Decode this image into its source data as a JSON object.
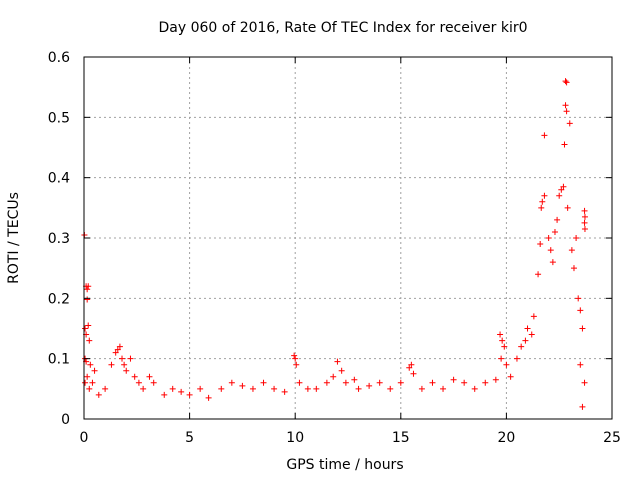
{
  "chart_data": {
    "type": "scatter",
    "title": "Day 060 of 2016, Rate Of TEC Index for receiver kir0",
    "xlabel": "GPS time / hours",
    "ylabel": "ROTI / TECUs",
    "xlim": [
      0,
      25
    ],
    "ylim": [
      0,
      0.6
    ],
    "x_ticks": [
      0,
      5,
      10,
      15,
      20,
      25
    ],
    "x_tick_labels": [
      "0",
      "5",
      "10",
      "15",
      "20",
      "25"
    ],
    "y_ticks": [
      0,
      0.1,
      0.2,
      0.3,
      0.4,
      0.5,
      0.6
    ],
    "y_tick_labels": [
      "0",
      "0.1",
      "0.2",
      "0.3",
      "0.4",
      "0.5",
      "0.6"
    ],
    "grid": true,
    "marker": "plus",
    "color": "#ff0000",
    "series": [
      {
        "name": "ROTI",
        "points": [
          [
            0.02,
            0.305
          ],
          [
            0.1,
            0.22
          ],
          [
            0.15,
            0.215
          ],
          [
            0.2,
            0.22
          ],
          [
            0.15,
            0.198
          ],
          [
            0.05,
            0.15
          ],
          [
            0.1,
            0.14
          ],
          [
            0.2,
            0.155
          ],
          [
            0.25,
            0.13
          ],
          [
            0.05,
            0.1
          ],
          [
            0.1,
            0.095
          ],
          [
            0.3,
            0.09
          ],
          [
            0.05,
            0.06
          ],
          [
            0.15,
            0.07
          ],
          [
            0.25,
            0.05
          ],
          [
            0.4,
            0.06
          ],
          [
            0.5,
            0.08
          ],
          [
            0.7,
            0.04
          ],
          [
            1.0,
            0.05
          ],
          [
            1.3,
            0.09
          ],
          [
            1.5,
            0.11
          ],
          [
            1.6,
            0.115
          ],
          [
            1.7,
            0.12
          ],
          [
            1.8,
            0.1
          ],
          [
            1.9,
            0.09
          ],
          [
            2.0,
            0.08
          ],
          [
            2.2,
            0.1
          ],
          [
            2.4,
            0.07
          ],
          [
            2.6,
            0.06
          ],
          [
            2.8,
            0.05
          ],
          [
            3.1,
            0.07
          ],
          [
            3.3,
            0.06
          ],
          [
            3.8,
            0.04
          ],
          [
            4.2,
            0.05
          ],
          [
            4.6,
            0.045
          ],
          [
            5.0,
            0.04
          ],
          [
            5.5,
            0.05
          ],
          [
            5.9,
            0.035
          ],
          [
            6.5,
            0.05
          ],
          [
            7.0,
            0.06
          ],
          [
            7.5,
            0.055
          ],
          [
            8.0,
            0.05
          ],
          [
            8.5,
            0.06
          ],
          [
            9.0,
            0.05
          ],
          [
            9.5,
            0.045
          ],
          [
            9.95,
            0.105
          ],
          [
            10.0,
            0.1
          ],
          [
            10.05,
            0.09
          ],
          [
            10.2,
            0.06
          ],
          [
            10.6,
            0.05
          ],
          [
            11.0,
            0.05
          ],
          [
            11.5,
            0.06
          ],
          [
            11.8,
            0.07
          ],
          [
            12.0,
            0.095
          ],
          [
            12.2,
            0.08
          ],
          [
            12.4,
            0.06
          ],
          [
            12.8,
            0.065
          ],
          [
            13.0,
            0.05
          ],
          [
            13.5,
            0.055
          ],
          [
            14.0,
            0.06
          ],
          [
            14.5,
            0.05
          ],
          [
            15.0,
            0.06
          ],
          [
            15.4,
            0.085
          ],
          [
            15.5,
            0.09
          ],
          [
            15.6,
            0.075
          ],
          [
            16.0,
            0.05
          ],
          [
            16.5,
            0.06
          ],
          [
            17.0,
            0.05
          ],
          [
            17.5,
            0.065
          ],
          [
            18.0,
            0.06
          ],
          [
            18.5,
            0.05
          ],
          [
            19.0,
            0.06
          ],
          [
            19.5,
            0.065
          ],
          [
            19.7,
            0.14
          ],
          [
            19.8,
            0.13
          ],
          [
            19.9,
            0.12
          ],
          [
            19.75,
            0.1
          ],
          [
            20.0,
            0.09
          ],
          [
            20.2,
            0.07
          ],
          [
            20.5,
            0.1
          ],
          [
            20.7,
            0.12
          ],
          [
            20.9,
            0.13
          ],
          [
            21.0,
            0.15
          ],
          [
            21.2,
            0.14
          ],
          [
            21.3,
            0.17
          ],
          [
            21.5,
            0.24
          ],
          [
            21.6,
            0.29
          ],
          [
            21.65,
            0.35
          ],
          [
            21.7,
            0.36
          ],
          [
            21.8,
            0.37
          ],
          [
            21.8,
            0.47
          ],
          [
            22.0,
            0.3
          ],
          [
            22.1,
            0.28
          ],
          [
            22.2,
            0.26
          ],
          [
            22.3,
            0.31
          ],
          [
            22.4,
            0.33
          ],
          [
            22.5,
            0.37
          ],
          [
            22.6,
            0.38
          ],
          [
            22.7,
            0.385
          ],
          [
            22.75,
            0.455
          ],
          [
            22.8,
            0.52
          ],
          [
            22.85,
            0.51
          ],
          [
            22.8,
            0.56
          ],
          [
            22.85,
            0.558
          ],
          [
            23.0,
            0.49
          ],
          [
            22.9,
            0.35
          ],
          [
            23.1,
            0.28
          ],
          [
            23.2,
            0.25
          ],
          [
            23.3,
            0.3
          ],
          [
            23.4,
            0.2
          ],
          [
            23.5,
            0.18
          ],
          [
            23.7,
            0.345
          ],
          [
            23.72,
            0.335
          ],
          [
            23.7,
            0.325
          ],
          [
            23.72,
            0.315
          ],
          [
            23.6,
            0.15
          ],
          [
            23.5,
            0.09
          ],
          [
            23.7,
            0.06
          ],
          [
            23.6,
            0.02
          ]
        ]
      }
    ]
  }
}
